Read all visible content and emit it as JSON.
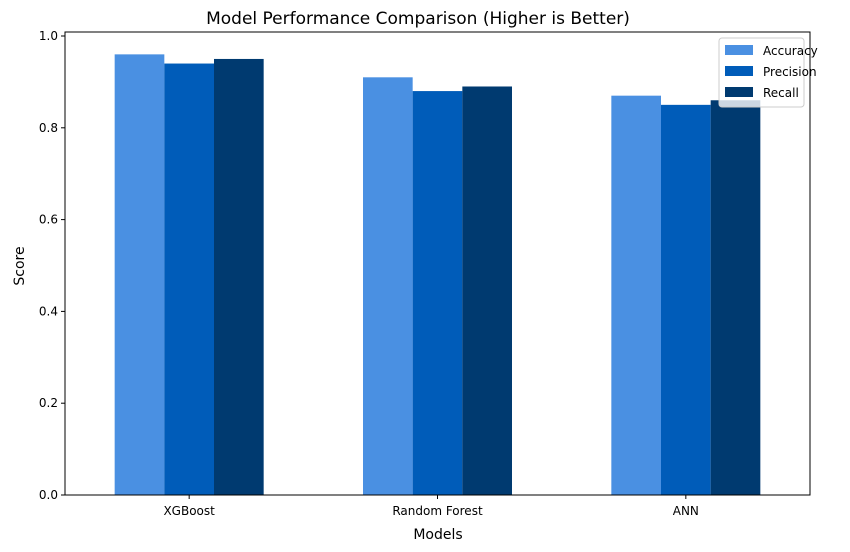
{
  "chart_data": {
    "type": "bar",
    "title": "Model Performance Comparison (Higher is Better)",
    "xlabel": "Models",
    "ylabel": "Score",
    "categories": [
      "XGBoost",
      "Random Forest",
      "ANN"
    ],
    "series": [
      {
        "name": "Accuracy",
        "values": [
          0.96,
          0.91,
          0.87
        ],
        "color": "#4a90e2"
      },
      {
        "name": "Precision",
        "values": [
          0.94,
          0.88,
          0.85
        ],
        "color": "#005cb9"
      },
      {
        "name": "Recall",
        "values": [
          0.95,
          0.89,
          0.86
        ],
        "color": "#003a70"
      }
    ],
    "ylim": [
      0,
      1.0
    ],
    "yticks": [
      0.0,
      0.2,
      0.4,
      0.6,
      0.8,
      1.0
    ],
    "ytick_labels": [
      "0.0",
      "0.2",
      "0.4",
      "0.6",
      "0.8",
      "1.0"
    ],
    "grid": false,
    "legend_position": "top-right"
  }
}
